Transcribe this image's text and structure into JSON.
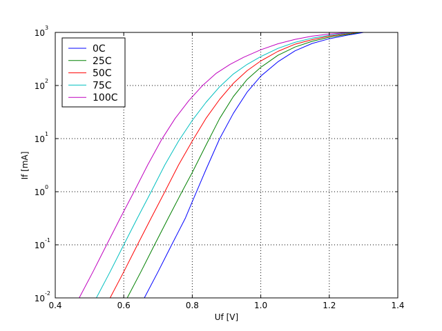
{
  "chart_data": {
    "type": "line",
    "title": "",
    "xlabel": "Uf [V]",
    "ylabel": "If [mA]",
    "xlim": [
      0.4,
      1.4
    ],
    "ylim": [
      0.01,
      1000
    ],
    "yscale": "log",
    "grid": true,
    "legend_position": "top-left",
    "x_ticks": [
      {
        "value": 0.4,
        "label": "0.4"
      },
      {
        "value": 0.6,
        "label": "0.6"
      },
      {
        "value": 0.8,
        "label": "0.8"
      },
      {
        "value": 1.0,
        "label": "1.0"
      },
      {
        "value": 1.2,
        "label": "1.2"
      },
      {
        "value": 1.4,
        "label": "1.4"
      }
    ],
    "y_ticks": [
      {
        "value": 0.01,
        "base": "10",
        "exp": "-2"
      },
      {
        "value": 0.1,
        "base": "10",
        "exp": "-1"
      },
      {
        "value": 1,
        "base": "10",
        "exp": "0"
      },
      {
        "value": 10,
        "base": "10",
        "exp": "1"
      },
      {
        "value": 100,
        "base": "10",
        "exp": "2"
      },
      {
        "value": 1000,
        "base": "10",
        "exp": "3"
      }
    ],
    "series": [
      {
        "name": "0C",
        "color": "#0000ff",
        "x": [
          0.66,
          0.7,
          0.74,
          0.78,
          0.8,
          0.84,
          0.88,
          0.92,
          0.96,
          1.0,
          1.05,
          1.1,
          1.15,
          1.2,
          1.25,
          1.3
        ],
        "y": [
          0.01,
          0.031,
          0.1,
          0.32,
          0.65,
          2.6,
          10,
          30,
          75,
          150,
          280,
          450,
          620,
          760,
          880,
          1000
        ]
      },
      {
        "name": "25C",
        "color": "#008000",
        "x": [
          0.61,
          0.65,
          0.69,
          0.73,
          0.77,
          0.8,
          0.84,
          0.88,
          0.92,
          0.96,
          1.0,
          1.05,
          1.1,
          1.15,
          1.2,
          1.29
        ],
        "y": [
          0.01,
          0.031,
          0.1,
          0.32,
          1.0,
          2.3,
          7.5,
          24,
          62,
          130,
          220,
          370,
          530,
          680,
          810,
          1000
        ]
      },
      {
        "name": "50C",
        "color": "#ff0000",
        "x": [
          0.56,
          0.6,
          0.64,
          0.68,
          0.72,
          0.76,
          0.8,
          0.84,
          0.88,
          0.92,
          0.96,
          1.0,
          1.05,
          1.1,
          1.15,
          1.2,
          1.28
        ],
        "y": [
          0.01,
          0.031,
          0.1,
          0.32,
          1.0,
          3.2,
          9.0,
          24,
          55,
          110,
          190,
          290,
          440,
          600,
          730,
          850,
          1000
        ]
      },
      {
        "name": "75C",
        "color": "#00bfbf",
        "x": [
          0.52,
          0.56,
          0.6,
          0.64,
          0.68,
          0.72,
          0.76,
          0.8,
          0.84,
          0.88,
          0.92,
          0.96,
          1.0,
          1.05,
          1.1,
          1.15,
          1.2,
          1.27
        ],
        "y": [
          0.01,
          0.031,
          0.1,
          0.32,
          1.0,
          3.2,
          9.0,
          22,
          48,
          95,
          165,
          250,
          350,
          500,
          650,
          780,
          880,
          1000
        ]
      },
      {
        "name": "100C",
        "color": "#bf00bf",
        "x": [
          0.47,
          0.51,
          0.55,
          0.59,
          0.63,
          0.67,
          0.71,
          0.75,
          0.79,
          0.83,
          0.87,
          0.91,
          0.95,
          1.0,
          1.05,
          1.1,
          1.15,
          1.2,
          1.26
        ],
        "y": [
          0.01,
          0.031,
          0.1,
          0.32,
          1.0,
          3.2,
          9.5,
          24,
          52,
          100,
          170,
          250,
          340,
          470,
          610,
          740,
          850,
          930,
          1000
        ]
      }
    ]
  }
}
